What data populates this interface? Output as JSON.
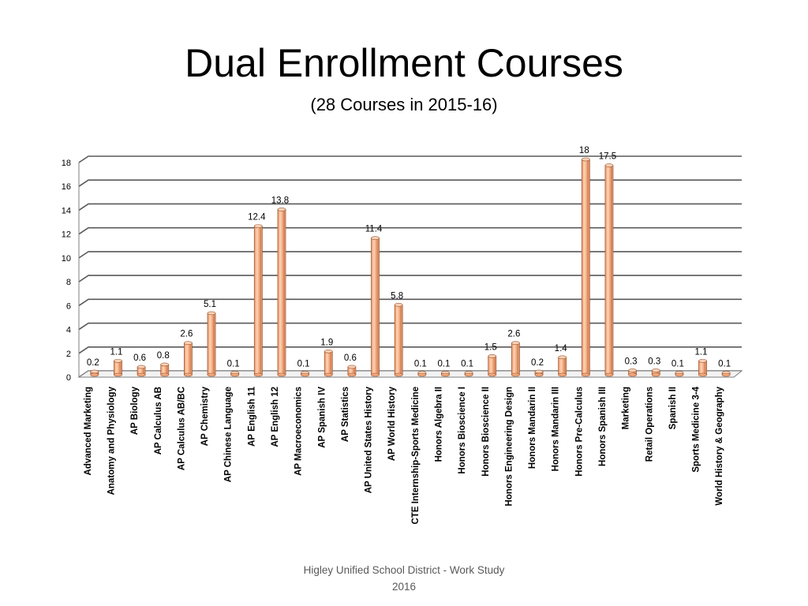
{
  "slide": {
    "title": "Dual Enrollment Courses",
    "subtitle": "(28 Courses in 2015-16)",
    "footer_line1": "Higley Unified School District  - Work Study",
    "footer_line2": "2016"
  },
  "colors": {
    "bar_face": "#f4a97e",
    "bar_light": "#fbd3b7",
    "bar_dark": "#c8784d",
    "bar_outline": "#9a5a36",
    "grid": "#595959",
    "wall": "#7f7f7f"
  },
  "chart_data": {
    "type": "bar",
    "categories": [
      "Advanced Marketing",
      "Anatomy and Physiology",
      "AP Biology",
      "AP Calculus AB",
      "AP Calculus AB/BC",
      "AP Chemistry",
      "AP Chinese Language",
      "AP English 11",
      "AP English 12",
      "AP Macroeconomics",
      "AP Spanish IV",
      "AP Statistics",
      "AP United States History",
      "AP World History",
      "CTE Internship-Sports Medicine",
      "Honors Algebra II",
      "Honors Bioscience I",
      "Honors Bioscience II",
      "Honors Engineering Design",
      "Honors Mandarin II",
      "Honors Mandarin III",
      "Honors Pre-Calculus",
      "Honors Spanish III",
      "Marketing",
      "Retail Operations",
      "Spanish II",
      "Sports Medicine 3-4",
      "World History & Geography"
    ],
    "values": [
      0.2,
      1.1,
      0.6,
      0.8,
      2.6,
      5.1,
      0.1,
      12.4,
      13.8,
      0.1,
      1.9,
      0.6,
      11.4,
      5.8,
      0.1,
      0.1,
      0.1,
      1.5,
      2.6,
      0.2,
      1.4,
      18,
      17.5,
      0.3,
      0.3,
      0.1,
      1.1,
      0.1
    ],
    "value_labels": [
      "0.2",
      "1.1",
      "0.6",
      "0.8",
      "2.6",
      "5.1",
      "0.1",
      "12.4",
      "13.8",
      "0.1",
      "1.9",
      "0.6",
      "11.4",
      "5.8",
      "0.1",
      "0.1",
      "0.1",
      "1.5",
      "2.6",
      "0.2",
      "1.4",
      "18",
      "17.5",
      "0.3",
      "0.3",
      "0.1",
      "1.1",
      "0.1"
    ],
    "yticks": [
      "0",
      "2",
      "4",
      "6",
      "8",
      "10",
      "12",
      "14",
      "16",
      "18"
    ],
    "ylim": [
      0,
      18
    ],
    "grid": true,
    "legend": "none",
    "style": "3d-column"
  }
}
